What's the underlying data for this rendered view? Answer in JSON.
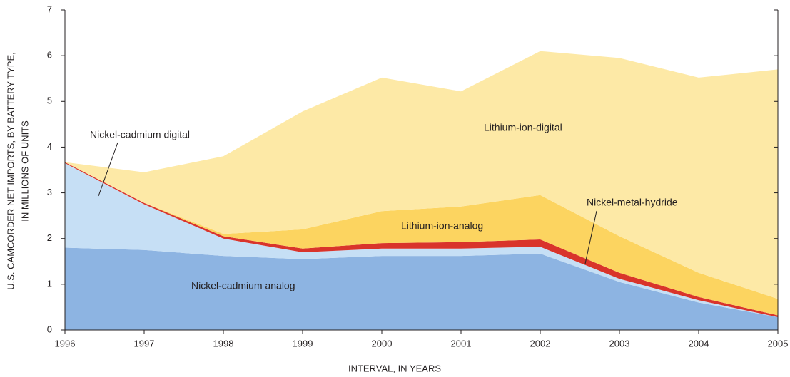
{
  "chart_data": {
    "type": "stacked_area",
    "xlabel": "INTERVAL, IN YEARS",
    "ylabel": [
      "U.S. CAMCORDER NET IMPORTS, BY BATTERY TYPE,",
      "IN MILLIONS OF UNITS"
    ],
    "x": [
      1996,
      1997,
      1998,
      1999,
      2000,
      2001,
      2002,
      2003,
      2004,
      2005
    ],
    "xlim": [
      1996,
      2005
    ],
    "xticks": [
      1996,
      1997,
      1998,
      1999,
      2000,
      2001,
      2002,
      2003,
      2004,
      2005
    ],
    "ylim": [
      0,
      7
    ],
    "yticks": [
      0,
      1,
      2,
      3,
      4,
      5,
      6,
      7
    ],
    "series": [
      {
        "name": "Nickel-cadmium analog",
        "color": "#8db4e2",
        "values": [
          1.8,
          1.75,
          1.62,
          1.55,
          1.62,
          1.62,
          1.67,
          1.05,
          0.6,
          0.28
        ]
      },
      {
        "name": "Nickel-cadmium digital",
        "color": "#c6dff5",
        "values": [
          1.85,
          1.0,
          0.38,
          0.15,
          0.16,
          0.16,
          0.15,
          0.07,
          0.05,
          0.0
        ]
      },
      {
        "name": "Nickel-metal-hydride",
        "color": "#d9342b",
        "values": [
          0.02,
          0.03,
          0.05,
          0.08,
          0.12,
          0.14,
          0.16,
          0.13,
          0.07,
          0.04
        ]
      },
      {
        "name": "Lithium-ion-analog",
        "color": "#fcd460",
        "values": [
          0,
          0,
          0.05,
          0.42,
          0.7,
          0.78,
          0.97,
          0.8,
          0.53,
          0.36
        ]
      },
      {
        "name": "Lithium-ion-digital",
        "color": "#fde9a6",
        "values": [
          0,
          0.67,
          1.7,
          2.58,
          2.92,
          2.52,
          3.15,
          3.9,
          4.27,
          5.02
        ]
      }
    ]
  }
}
